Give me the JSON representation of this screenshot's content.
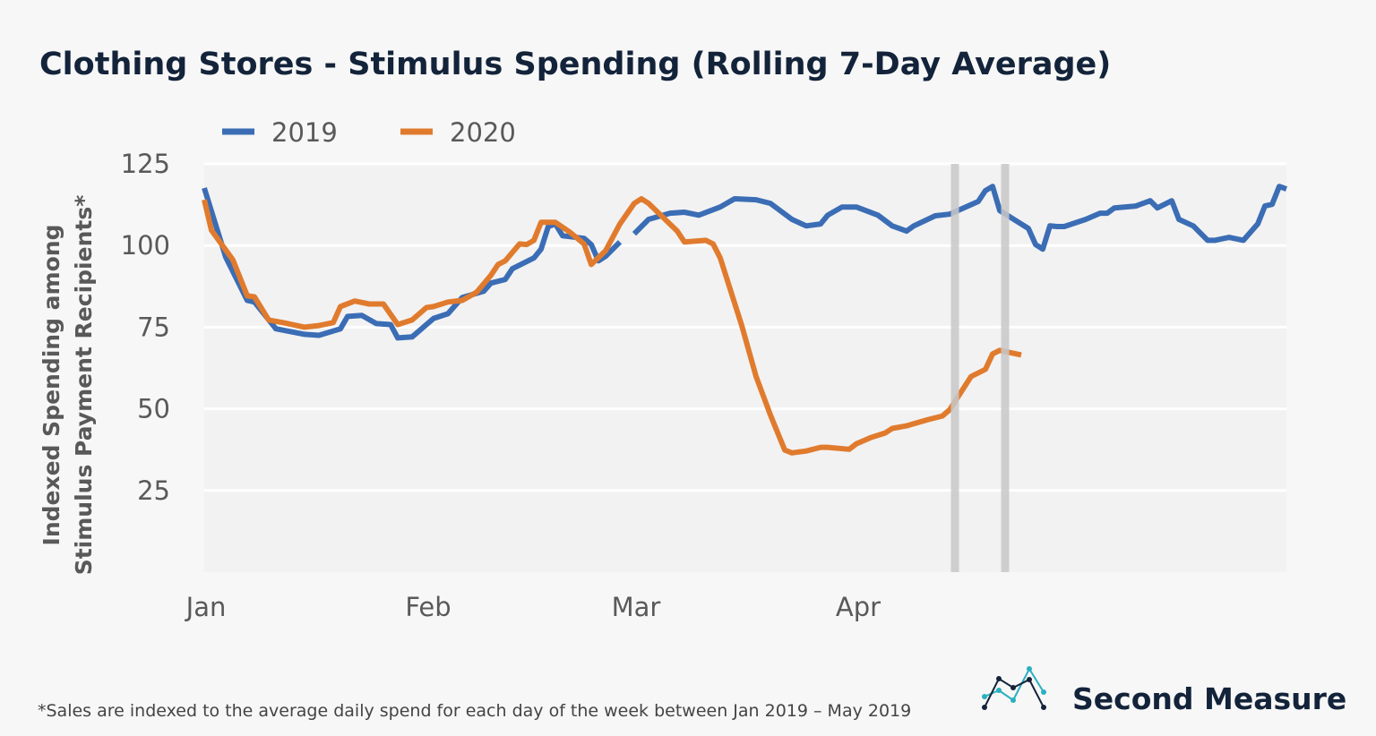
{
  "chart_data": {
    "type": "line",
    "title": "Clothing Stores - Stimulus Spending (Rolling 7-Day Average)",
    "xlabel": "",
    "ylabel": [
      "Indexed Spending among",
      "Stimulus Payment Recipients*"
    ],
    "x_format": "MM-DD",
    "xlim": [
      "01-01",
      "05-31"
    ],
    "ylim": [
      0,
      125
    ],
    "yticks": [
      25,
      50,
      75,
      100,
      125
    ],
    "xticks": [
      {
        "date": "01-01",
        "label": "Jan"
      },
      {
        "date": "02-01",
        "label": "Feb"
      },
      {
        "date": "03-01",
        "label": "Mar"
      },
      {
        "date": "04-01",
        "label": "Apr"
      }
    ],
    "grid": true,
    "legend_position": "top-left",
    "reference_lines": [
      "04-15",
      "04-22"
    ],
    "reference_line_color": "#c8c8c8",
    "series": [
      {
        "name": "2019",
        "color": "#3b6db5",
        "points": [
          [
            "01-01",
            117.6
          ],
          [
            "01-04",
            96.4
          ],
          [
            "01-07",
            83.2
          ],
          [
            "01-08",
            82.7
          ],
          [
            "01-11",
            74.5
          ],
          [
            "01-15",
            72.8
          ],
          [
            "01-17",
            72.5
          ],
          [
            "01-20",
            74.5
          ],
          [
            "01-21",
            78.3
          ],
          [
            "01-23",
            78.6
          ],
          [
            "01-25",
            76.1
          ],
          [
            "01-27",
            75.8
          ],
          [
            "01-28",
            71.7
          ],
          [
            "01-30",
            72.0
          ],
          [
            "02-02",
            77.7
          ],
          [
            "02-04",
            79.1
          ],
          [
            "02-06",
            84.1
          ],
          [
            "02-09",
            86.0
          ],
          [
            "02-10",
            88.5
          ],
          [
            "02-12",
            89.6
          ],
          [
            "02-13",
            92.9
          ],
          [
            "02-16",
            96.2
          ],
          [
            "02-17",
            98.9
          ],
          [
            "02-18",
            105.8
          ],
          [
            "02-19",
            106.6
          ],
          [
            "02-20",
            103.0
          ],
          [
            "02-23",
            102.2
          ],
          [
            "02-24",
            100.3
          ],
          [
            "02-25",
            95.3
          ],
          [
            "02-26",
            96.7
          ],
          [
            "02-28",
            101.1
          ],
          [
            "02-29",
            null
          ],
          [
            "03-01",
            103.6
          ],
          [
            "03-03",
            108.0
          ],
          [
            "03-06",
            109.9
          ],
          [
            "03-08",
            110.2
          ],
          [
            "03-10",
            109.3
          ],
          [
            "03-13",
            111.8
          ],
          [
            "03-15",
            114.3
          ],
          [
            "03-18",
            114.0
          ],
          [
            "03-20",
            112.9
          ],
          [
            "03-23",
            108.0
          ],
          [
            "03-25",
            106.0
          ],
          [
            "03-27",
            106.6
          ],
          [
            "03-28",
            109.3
          ],
          [
            "03-30",
            111.8
          ],
          [
            "04-01",
            111.8
          ],
          [
            "04-04",
            109.3
          ],
          [
            "04-06",
            106.0
          ],
          [
            "04-08",
            104.4
          ],
          [
            "04-09",
            106.0
          ],
          [
            "04-12",
            109.1
          ],
          [
            "04-14",
            109.6
          ],
          [
            "04-18",
            113.5
          ],
          [
            "04-19",
            116.8
          ],
          [
            "04-20",
            118.1
          ],
          [
            "04-21",
            110.7
          ],
          [
            "04-25",
            105.2
          ],
          [
            "04-26",
            100.3
          ],
          [
            "04-27",
            98.9
          ],
          [
            "04-28",
            106.0
          ],
          [
            "04-29",
            105.8
          ],
          [
            "04-30",
            105.8
          ],
          [
            "05-03",
            108.0
          ],
          [
            "05-05",
            109.9
          ],
          [
            "05-06",
            109.9
          ],
          [
            "05-07",
            111.5
          ],
          [
            "05-10",
            112.1
          ],
          [
            "05-12",
            113.7
          ],
          [
            "05-13",
            111.5
          ],
          [
            "05-15",
            113.7
          ],
          [
            "05-16",
            108.0
          ],
          [
            "05-18",
            106.0
          ],
          [
            "05-20",
            101.6
          ],
          [
            "05-21",
            101.6
          ],
          [
            "05-23",
            102.5
          ],
          [
            "05-25",
            101.6
          ],
          [
            "05-27",
            106.6
          ],
          [
            "05-28",
            112.1
          ],
          [
            "05-29",
            112.6
          ],
          [
            "05-30",
            118.1
          ],
          [
            "05-31",
            117.3
          ]
        ]
      },
      {
        "name": "2020",
        "color": "#e07b2e",
        "points": [
          [
            "01-01",
            114.0
          ],
          [
            "01-02",
            104.7
          ],
          [
            "01-05",
            95.6
          ],
          [
            "01-07",
            84.6
          ],
          [
            "01-08",
            84.3
          ],
          [
            "01-10",
            77.2
          ],
          [
            "01-12",
            76.4
          ],
          [
            "01-15",
            75.0
          ],
          [
            "01-17",
            75.5
          ],
          [
            "01-19",
            76.4
          ],
          [
            "01-20",
            81.3
          ],
          [
            "01-22",
            83.0
          ],
          [
            "01-24",
            82.1
          ],
          [
            "01-26",
            82.1
          ],
          [
            "01-28",
            75.8
          ],
          [
            "01-30",
            77.2
          ],
          [
            "02-01",
            81.0
          ],
          [
            "02-02",
            81.3
          ],
          [
            "02-04",
            82.7
          ],
          [
            "02-06",
            83.2
          ],
          [
            "02-08",
            85.7
          ],
          [
            "02-10",
            90.9
          ],
          [
            "02-11",
            94.2
          ],
          [
            "02-12",
            95.3
          ],
          [
            "02-14",
            100.5
          ],
          [
            "02-15",
            100.3
          ],
          [
            "02-16",
            101.6
          ],
          [
            "02-17",
            107.1
          ],
          [
            "02-19",
            107.1
          ],
          [
            "02-21",
            104.1
          ],
          [
            "02-23",
            100.5
          ],
          [
            "02-24",
            94.2
          ],
          [
            "02-26",
            98.4
          ],
          [
            "02-28",
            106.6
          ],
          [
            "03-01",
            112.9
          ],
          [
            "03-02",
            114.3
          ],
          [
            "03-03",
            112.9
          ],
          [
            "03-07",
            104.4
          ],
          [
            "03-08",
            101.1
          ],
          [
            "03-11",
            101.6
          ],
          [
            "03-12",
            100.5
          ],
          [
            "03-13",
            96.2
          ],
          [
            "03-16",
            75.5
          ],
          [
            "03-18",
            59.9
          ],
          [
            "03-20",
            48.1
          ],
          [
            "03-22",
            37.4
          ],
          [
            "03-23",
            36.5
          ],
          [
            "03-25",
            37.1
          ],
          [
            "03-27",
            38.2
          ],
          [
            "03-28",
            38.2
          ],
          [
            "03-31",
            37.6
          ],
          [
            "04-01",
            39.3
          ],
          [
            "04-03",
            41.2
          ],
          [
            "04-05",
            42.6
          ],
          [
            "04-06",
            44.0
          ],
          [
            "04-08",
            44.8
          ],
          [
            "04-11",
            46.7
          ],
          [
            "04-13",
            47.8
          ],
          [
            "04-14",
            49.7
          ],
          [
            "04-17",
            59.9
          ],
          [
            "04-19",
            62.1
          ],
          [
            "04-20",
            66.8
          ],
          [
            "04-21",
            67.9
          ],
          [
            "04-24",
            66.5
          ]
        ]
      }
    ],
    "footnote": "*Sales are indexed to the average daily spend for each day of the week between Jan 2019 – May 2019"
  },
  "brand": {
    "name": "Second Measure",
    "logo_colors": [
      "#13233a",
      "#2ab0bf"
    ]
  }
}
